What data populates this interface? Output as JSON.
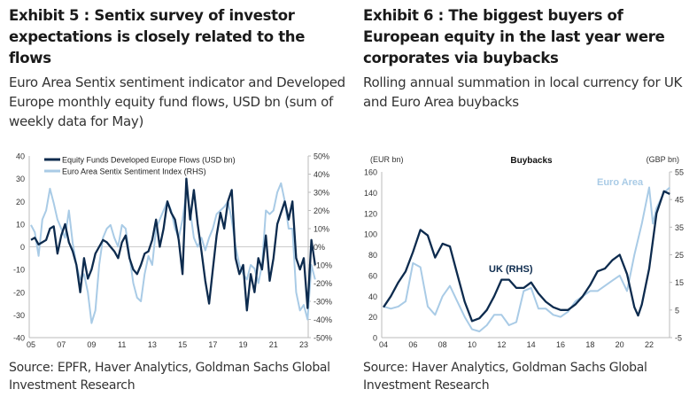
{
  "left": {
    "title": "Exhibit 5 : Sentix survey of investor expectations is closely related to the flows",
    "subtitle": "Euro Area Sentix sentiment indicator and Developed Europe monthly equity fund flows, USD bn (sum of weekly data for May)",
    "source": "Source: EPFR, Haver Analytics, Goldman Sachs Global Investment Research"
  },
  "right": {
    "title": "Exhibit 6 : The biggest buyers of European equity in the last year were corporates via buybacks",
    "subtitle": "Rolling annual summation in local currency for UK and Euro Area buybacks",
    "source": "Source: Haver Analytics, Goldman Sachs Global Investment Research"
  },
  "chart_data": [
    {
      "type": "line",
      "title": "",
      "x_tick_labels": [
        "05",
        "07",
        "09",
        "11",
        "13",
        "15",
        "17",
        "19",
        "21",
        "23"
      ],
      "x_ticks": [
        2005,
        2007,
        2009,
        2011,
        2013,
        2015,
        2017,
        2019,
        2021,
        2023
      ],
      "xlim": [
        2005,
        2023.6
      ],
      "ylim_left": [
        -40,
        40
      ],
      "y_ticks_left": [
        "-40",
        "-30",
        "-20",
        "-10",
        "0",
        "10",
        "20",
        "30",
        "40"
      ],
      "ylim_right": [
        -50,
        50
      ],
      "y_ticks_right": [
        "-50%",
        "-40%",
        "-30%",
        "-20%",
        "-10%",
        "0%",
        "10%",
        "20%",
        "30%",
        "40%",
        "50%"
      ],
      "legend_position": "top-left",
      "series": [
        {
          "name": "Equity Funds Developed Europe Flows (USD bn)",
          "axis": "left",
          "color": "#0d2b4e",
          "x_start": 2005,
          "x_step": 0.25,
          "values": [
            3,
            4,
            1,
            2,
            3,
            8,
            9,
            -3,
            5,
            10,
            2,
            -2,
            -8,
            -20,
            -5,
            -14,
            -10,
            -3,
            0,
            3,
            2,
            0,
            -2,
            -5,
            2,
            5,
            -5,
            -10,
            -12,
            -8,
            -3,
            -2,
            3,
            12,
            0,
            8,
            20,
            15,
            12,
            3,
            -12,
            30,
            12,
            25,
            10,
            -2,
            -15,
            -25,
            -10,
            5,
            15,
            8,
            20,
            25,
            -5,
            -12,
            -8,
            -28,
            -12,
            -20,
            -5,
            -10,
            5,
            -15,
            -5,
            10,
            15,
            20,
            12,
            20,
            -5,
            -10,
            -5,
            -27,
            3,
            -8
          ]
        },
        {
          "name": "Euro Area Sentix Sentiment Index (RHS)",
          "axis": "right",
          "color": "#a9cbe6",
          "x_start": 2005,
          "x_step": 0.25,
          "values": [
            12,
            8,
            -5,
            15,
            20,
            32,
            24,
            15,
            10,
            5,
            20,
            2,
            -10,
            -18,
            -15,
            -25,
            -42,
            -35,
            -10,
            5,
            10,
            12,
            5,
            0,
            12,
            10,
            -5,
            -20,
            -28,
            -30,
            -15,
            -5,
            -10,
            10,
            15,
            20,
            25,
            20,
            10,
            5,
            15,
            30,
            20,
            5,
            0,
            5,
            -2,
            5,
            10,
            18,
            20,
            22,
            25,
            15,
            0,
            -10,
            -15,
            -18,
            -10,
            -12,
            -20,
            -10,
            20,
            18,
            20,
            30,
            35,
            25,
            10,
            10,
            -25,
            -35,
            -32,
            -40,
            -10,
            -18
          ]
        }
      ]
    },
    {
      "type": "line",
      "title": "Buybacks",
      "ylabel_left": "(EUR bn)",
      "ylabel_right": "(GBP bn)",
      "x_tick_labels": [
        "04",
        "06",
        "08",
        "10",
        "12",
        "14",
        "16",
        "18",
        "20",
        "22"
      ],
      "x_ticks": [
        2004,
        2006,
        2008,
        2010,
        2012,
        2014,
        2016,
        2018,
        2020,
        2022
      ],
      "xlim": [
        2004,
        2023.5
      ],
      "ylim_left": [
        0,
        160
      ],
      "y_ticks_left": [
        "0",
        "20",
        "40",
        "60",
        "80",
        "100",
        "120",
        "140",
        "160"
      ],
      "ylim_right": [
        -5,
        55
      ],
      "y_ticks_right": [
        "-5",
        "5",
        "15",
        "25",
        "35",
        "45",
        "55"
      ],
      "series": [
        {
          "name": "Euro Area",
          "axis": "left",
          "color": "#a9cbe6",
          "x": [
            2004,
            2004.5,
            2005,
            2005.5,
            2006,
            2006.5,
            2007,
            2007.5,
            2008,
            2008.5,
            2009,
            2009.5,
            2010,
            2010.5,
            2011,
            2011.5,
            2012,
            2012.5,
            2013,
            2013.5,
            2014,
            2014.5,
            2015,
            2015.5,
            2016,
            2016.5,
            2017,
            2017.5,
            2018,
            2018.5,
            2019,
            2019.5,
            2020,
            2020.5,
            2021,
            2021.5,
            2022,
            2022.25,
            2022.5,
            2023,
            2023.4
          ],
          "values": [
            30,
            28,
            30,
            35,
            72,
            68,
            30,
            22,
            40,
            50,
            35,
            20,
            8,
            6,
            12,
            22,
            22,
            12,
            15,
            45,
            48,
            28,
            28,
            22,
            20,
            25,
            35,
            40,
            45,
            45,
            50,
            55,
            60,
            45,
            80,
            110,
            145,
            110,
            125,
            140,
            145
          ]
        },
        {
          "name": "UK (RHS)",
          "axis": "right",
          "color": "#0d2b4e",
          "x": [
            2004,
            2004.5,
            2005,
            2005.5,
            2006,
            2006.5,
            2007,
            2007.5,
            2008,
            2008.5,
            2009,
            2009.5,
            2010,
            2010.5,
            2011,
            2011.5,
            2012,
            2012.5,
            2013,
            2013.5,
            2014,
            2014.5,
            2015,
            2015.5,
            2016,
            2016.5,
            2017,
            2017.5,
            2018,
            2018.5,
            2019,
            2019.5,
            2020,
            2020.5,
            2021,
            2021.25,
            2021.5,
            2022,
            2022.5,
            2023,
            2023.4
          ],
          "values": [
            6,
            10,
            15,
            19,
            26,
            34,
            32,
            24,
            29,
            28,
            18,
            8,
            1,
            2,
            5,
            10,
            16,
            16,
            13,
            13,
            15,
            11,
            8,
            6,
            5,
            5,
            7,
            10,
            14,
            19,
            20,
            23,
            25,
            18,
            6,
            3,
            7,
            20,
            40,
            48,
            47
          ]
        }
      ]
    }
  ]
}
